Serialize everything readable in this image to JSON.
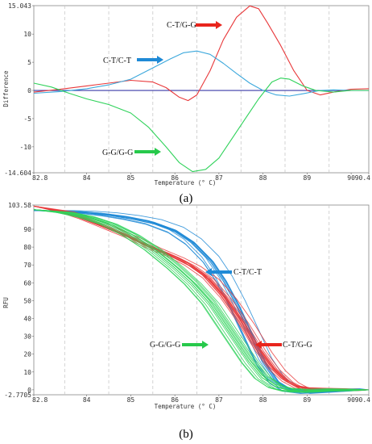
{
  "chart_data": [
    {
      "id": "a",
      "type": "line",
      "caption": "(a)",
      "xlabel": "Temperature (° C)",
      "ylabel": "Difference",
      "xlim": [
        82.8,
        90.4
      ],
      "ylim": [
        -14.604,
        15.043
      ],
      "x_ticks": [
        "82.8",
        "84",
        "85",
        "86",
        "87",
        "88",
        "89",
        "90",
        "90.4"
      ],
      "y_ticks": [
        "15.043",
        "10",
        "5",
        "0",
        "-5",
        "-10",
        "-14.604"
      ],
      "grid": true,
      "series": [
        {
          "name": "C-T/G-G",
          "color": "#e8383a",
          "x": [
            82.8,
            83.4,
            84.0,
            84.5,
            85.0,
            85.5,
            85.8,
            86.1,
            86.3,
            86.5,
            86.8,
            87.1,
            87.4,
            87.7,
            87.9,
            88.1,
            88.4,
            88.7,
            89.0,
            89.3,
            89.6,
            90.0,
            90.4
          ],
          "y": [
            -0.3,
            0.2,
            0.8,
            1.3,
            1.8,
            1.5,
            0.5,
            -1.2,
            -1.8,
            -0.8,
            3.5,
            9.0,
            13.0,
            15.0,
            14.5,
            12.0,
            8.0,
            3.5,
            0.0,
            -0.8,
            -0.3,
            0.2,
            0.3
          ]
        },
        {
          "name": "C-T/C-T",
          "color": "#3ca8dc",
          "x": [
            82.8,
            83.4,
            84.0,
            84.5,
            85.0,
            85.5,
            85.9,
            86.2,
            86.5,
            86.8,
            87.1,
            87.4,
            87.7,
            88.0,
            88.3,
            88.6,
            88.9,
            89.3,
            89.6,
            90.0,
            90.4
          ],
          "y": [
            -0.5,
            -0.2,
            0.3,
            1.0,
            2.0,
            4.0,
            5.6,
            6.7,
            7.0,
            6.4,
            4.8,
            3.0,
            1.3,
            0.0,
            -0.8,
            -1.0,
            -0.6,
            0.0,
            0.1,
            0.0,
            0.0
          ]
        },
        {
          "name": "G-G/G-G",
          "color": "#2fd25a",
          "x": [
            82.8,
            83.2,
            83.6,
            84.0,
            84.5,
            85.0,
            85.4,
            85.8,
            86.1,
            86.4,
            86.7,
            87.0,
            87.3,
            87.6,
            87.9,
            88.2,
            88.4,
            88.6,
            88.9,
            89.2,
            89.6,
            90.0,
            90.4
          ],
          "y": [
            1.3,
            0.6,
            -0.5,
            -1.5,
            -2.5,
            -4.0,
            -6.5,
            -10.0,
            -12.8,
            -14.4,
            -14.0,
            -12.0,
            -8.5,
            -5.0,
            -1.5,
            1.5,
            2.2,
            2.0,
            0.8,
            0.0,
            -0.3,
            0.0,
            0.0
          ]
        }
      ],
      "annotations": [
        {
          "text": "C-T/G-G",
          "arrow_color": "#e8251d"
        },
        {
          "text": "C-T/C-T",
          "arrow_color": "#1f8ad6"
        },
        {
          "text": "G-G/G-G",
          "arrow_color": "#27c94b"
        }
      ]
    },
    {
      "id": "b",
      "type": "line",
      "caption": "(b)",
      "xlabel": "Temperature (° C)",
      "ylabel": "RFU",
      "xlim": [
        82.8,
        90.4
      ],
      "ylim": [
        -2.7705,
        103.58
      ],
      "x_ticks": [
        "82.8",
        "84",
        "85",
        "86",
        "87",
        "88",
        "89",
        "90",
        "90.4"
      ],
      "y_ticks": [
        "103.58",
        "90",
        "80",
        "70",
        "60",
        "50",
        "40",
        "30",
        "20",
        "10",
        "0",
        "-2.7705"
      ],
      "grid": true,
      "series": [
        {
          "name": "C-T/C-T",
          "color": "#1f8ad6",
          "x": [
            82.8,
            83.5,
            84.0,
            84.5,
            85.0,
            85.5,
            86.0,
            86.4,
            86.8,
            87.1,
            87.4,
            87.7,
            88.0,
            88.3,
            88.6,
            89.0,
            89.5,
            90.0,
            90.4
          ],
          "y": [
            100.5,
            100.2,
            99.5,
            98.3,
            96.5,
            94.0,
            89.5,
            83.0,
            73.0,
            62.0,
            48.0,
            32.0,
            16.0,
            5.0,
            0.5,
            -1.0,
            -0.5,
            0.0,
            0.0
          ]
        },
        {
          "name": "C-T/G-G",
          "color": "#e8383a",
          "x": [
            82.8,
            83.5,
            84.0,
            84.5,
            85.0,
            85.5,
            86.0,
            86.4,
            86.8,
            87.2,
            87.6,
            88.0,
            88.3,
            88.6,
            88.9,
            89.2,
            89.5,
            90.0,
            90.4
          ],
          "y": [
            103.0,
            100.0,
            96.0,
            91.0,
            86.0,
            80.0,
            75.0,
            70.0,
            63.0,
            52.0,
            38.0,
            22.0,
            12.0,
            5.0,
            1.0,
            0.0,
            0.0,
            0.0,
            0.0
          ]
        },
        {
          "name": "G-G/G-G",
          "color": "#2fd25a",
          "x": [
            82.8,
            83.5,
            84.0,
            84.5,
            85.0,
            85.5,
            86.0,
            86.4,
            86.8,
            87.1,
            87.4,
            87.7,
            88.0,
            88.3,
            88.6,
            89.0,
            89.5,
            90.0,
            90.4
          ],
          "y": [
            101.0,
            99.5,
            97.0,
            93.0,
            87.0,
            79.0,
            69.0,
            60.0,
            49.0,
            38.0,
            27.0,
            16.0,
            7.0,
            2.0,
            0.0,
            -0.5,
            0.0,
            0.0,
            0.0
          ]
        }
      ],
      "annotations": [
        {
          "text": "C-T/C-T",
          "arrow_color": "#1f8ad6"
        },
        {
          "text": "G-G/G-G",
          "arrow_color": "#27c94b"
        },
        {
          "text": "C-T/G-G",
          "arrow_color": "#e8251d"
        }
      ]
    }
  ]
}
